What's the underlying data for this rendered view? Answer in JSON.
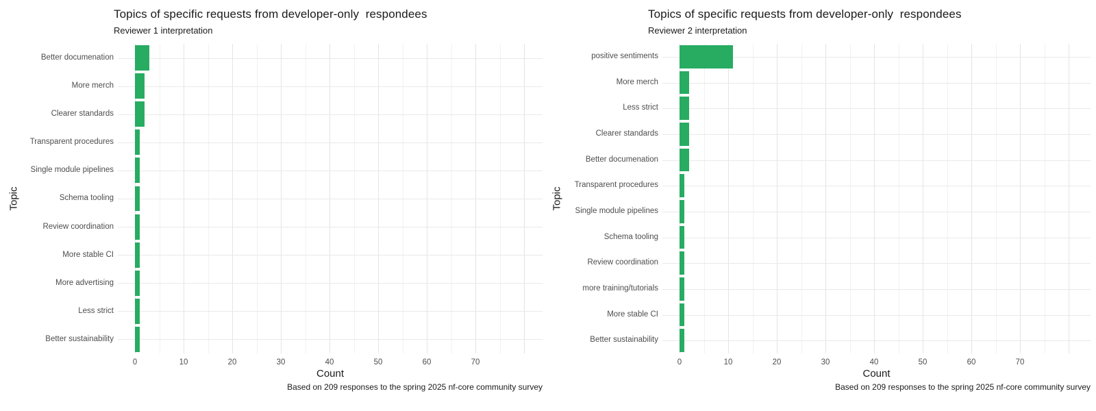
{
  "style": {
    "background": "#ffffff",
    "bar_color": "#27ac62",
    "gridline_major": "#e4e4e4",
    "gridline_minor": "#f1f1f1",
    "text_dark": "#1a1a1a",
    "text_gray": "#4d4d4d"
  },
  "chart_data": [
    {
      "type": "bar",
      "orientation": "horizontal",
      "title": "Topics of specific requests from developer-only  respondees",
      "subtitle": "Reviewer 1 interpretation",
      "xlabel": "Count",
      "ylabel": "Topic",
      "caption": "Based on 209 responses to the spring 2025 nf-core community survey",
      "categories": [
        "Better documenation",
        "More merch",
        "Clearer standards",
        "Transparent procedures",
        "Single module pipelines",
        "Schema tooling",
        "Review coordination",
        "More stable CI",
        "More advertising",
        "Less strict",
        "Better sustainability"
      ],
      "values": [
        3,
        2,
        2,
        1,
        1,
        1,
        1,
        1,
        1,
        1,
        1
      ],
      "xticks": [
        0,
        10,
        20,
        30,
        40,
        50,
        60,
        70
      ],
      "xlim": [
        0,
        84
      ],
      "gridline_step": 5,
      "grid": true,
      "legend": false,
      "bar_color": "#27ac62"
    },
    {
      "type": "bar",
      "orientation": "horizontal",
      "title": "Topics of specific requests from developer-only  respondees",
      "subtitle": "Reviewer 2 interpretation",
      "xlabel": "Count",
      "ylabel": "Topic",
      "caption": "Based on 209 responses to the spring 2025 nf-core community survey",
      "categories": [
        "positive sentiments",
        "More merch",
        "Less strict",
        "Clearer standards",
        "Better documenation",
        "Transparent procedures",
        "Single module pipelines",
        "Schema tooling",
        "Review coordination",
        "more training/tutorials",
        "More stable CI",
        "Better sustainability"
      ],
      "values": [
        11,
        2,
        2,
        2,
        2,
        1,
        1,
        1,
        1,
        1,
        1,
        1
      ],
      "xticks": [
        0,
        10,
        20,
        30,
        40,
        50,
        60,
        70
      ],
      "xlim": [
        0,
        84
      ],
      "gridline_step": 5,
      "grid": true,
      "legend": false,
      "bar_color": "#27ac62"
    }
  ]
}
